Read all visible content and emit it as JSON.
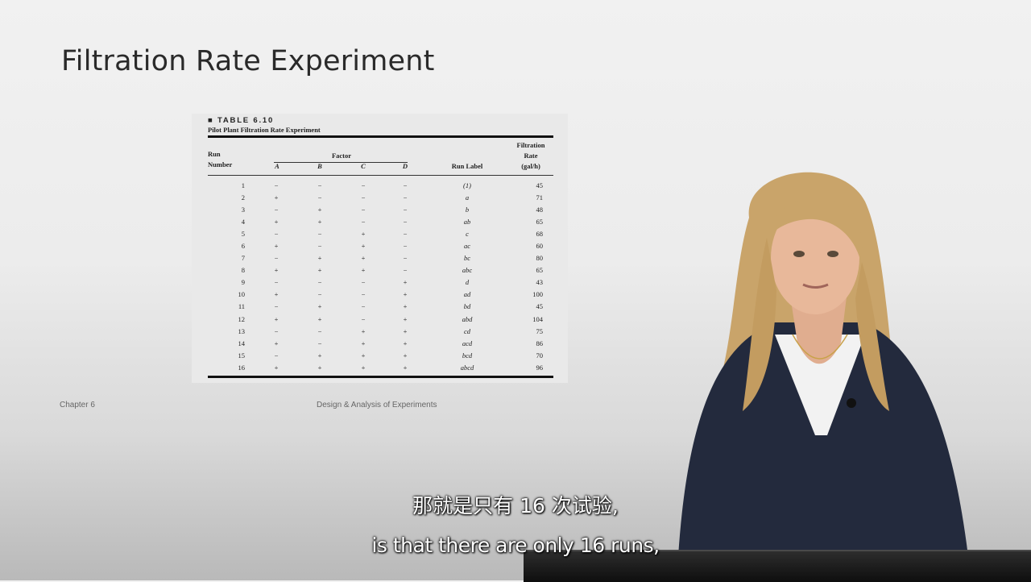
{
  "slide": {
    "title": "Filtration Rate Experiment",
    "footer_left": "Chapter 6",
    "footer_center": "Design & Analysis of Experiments"
  },
  "table": {
    "label": "■ TABLE 6.10",
    "caption": "Pilot Plant Filtration Rate Experiment",
    "headers": {
      "run_line1": "Run",
      "run_line2": "Number",
      "factor": "Factor",
      "a": "A",
      "b": "B",
      "c": "C",
      "d": "D",
      "run_label": "Run Label",
      "rate_line1": "Filtration",
      "rate_line2": "Rate",
      "rate_line3": "(gal/h)"
    },
    "rows": [
      {
        "run": "1",
        "a": "−",
        "b": "−",
        "c": "−",
        "d": "−",
        "label": "(1)",
        "rate": "45"
      },
      {
        "run": "2",
        "a": "+",
        "b": "−",
        "c": "−",
        "d": "−",
        "label": "a",
        "rate": "71"
      },
      {
        "run": "3",
        "a": "−",
        "b": "+",
        "c": "−",
        "d": "−",
        "label": "b",
        "rate": "48"
      },
      {
        "run": "4",
        "a": "+",
        "b": "+",
        "c": "−",
        "d": "−",
        "label": "ab",
        "rate": "65"
      },
      {
        "run": "5",
        "a": "−",
        "b": "−",
        "c": "+",
        "d": "−",
        "label": "c",
        "rate": "68"
      },
      {
        "run": "6",
        "a": "+",
        "b": "−",
        "c": "+",
        "d": "−",
        "label": "ac",
        "rate": "60"
      },
      {
        "run": "7",
        "a": "−",
        "b": "+",
        "c": "+",
        "d": "−",
        "label": "bc",
        "rate": "80"
      },
      {
        "run": "8",
        "a": "+",
        "b": "+",
        "c": "+",
        "d": "−",
        "label": "abc",
        "rate": "65"
      },
      {
        "run": "9",
        "a": "−",
        "b": "−",
        "c": "−",
        "d": "+",
        "label": "d",
        "rate": "43"
      },
      {
        "run": "10",
        "a": "+",
        "b": "−",
        "c": "−",
        "d": "+",
        "label": "ad",
        "rate": "100"
      },
      {
        "run": "11",
        "a": "−",
        "b": "+",
        "c": "−",
        "d": "+",
        "label": "bd",
        "rate": "45"
      },
      {
        "run": "12",
        "a": "+",
        "b": "+",
        "c": "−",
        "d": "+",
        "label": "abd",
        "rate": "104"
      },
      {
        "run": "13",
        "a": "−",
        "b": "−",
        "c": "+",
        "d": "+",
        "label": "cd",
        "rate": "75"
      },
      {
        "run": "14",
        "a": "+",
        "b": "−",
        "c": "+",
        "d": "+",
        "label": "acd",
        "rate": "86"
      },
      {
        "run": "15",
        "a": "−",
        "b": "+",
        "c": "+",
        "d": "+",
        "label": "bcd",
        "rate": "70"
      },
      {
        "run": "16",
        "a": "+",
        "b": "+",
        "c": "+",
        "d": "+",
        "label": "abcd",
        "rate": "96"
      }
    ]
  },
  "subtitles": {
    "zh": "那就是只有 16 次试验,",
    "en": "is that there are only 16 runs,"
  },
  "colors": {
    "cardigan": "#232a3d",
    "hair": "#c9a46a",
    "skin": "#e8b89a",
    "podium": "#1a1a1a"
  }
}
